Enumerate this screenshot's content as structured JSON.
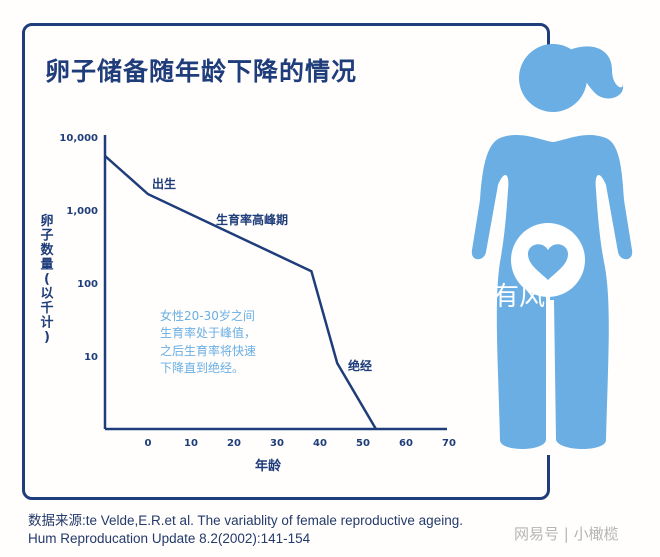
{
  "title": "卵子储备随年龄下降的情况",
  "source_line1": "数据来源:te Velde,E.R.et al. The variablity of female reproductive ageing.",
  "source_line2": "Hum Reproducation Update 8.2(2002):141-154",
  "watermark": "网易号 | 小橄榄",
  "overlay_text": "有风",
  "colors": {
    "navy": "#1f3d7a",
    "figure_blue": "#6aaee3",
    "note_blue": "#6aaee3"
  },
  "figure_icon": "woman-silhouette-with-heart-icon",
  "chart_data": {
    "type": "line",
    "title": "卵子储备随年龄下降的情况",
    "xlabel": "年龄",
    "ylabel": "卵子数量(以千计)",
    "y_scale": "log",
    "ylim": [
      1,
      10000
    ],
    "xlim": [
      -10,
      70
    ],
    "x_ticks": [
      "0",
      "10",
      "20",
      "30",
      "40",
      "50",
      "60",
      "70"
    ],
    "y_ticks": [
      "10,000",
      "1,000",
      "100",
      "10"
    ],
    "grid": false,
    "series": [
      {
        "x": [
          -10,
          0,
          38,
          44,
          53
        ],
        "y": [
          5500,
          1650,
          145,
          8,
          1
        ]
      }
    ],
    "annotations": [
      {
        "text": "出生",
        "x": 1,
        "y": 3000
      },
      {
        "text": "生育率高峰期",
        "x": 16,
        "y": 700
      },
      {
        "text": "绝经",
        "x": 46,
        "y": 8
      },
      {
        "text": [
          "女性20-30岁之间",
          "生育率处于峰值，",
          "之后生育率将快速",
          "下降直到绝经。"
        ]
      }
    ]
  }
}
